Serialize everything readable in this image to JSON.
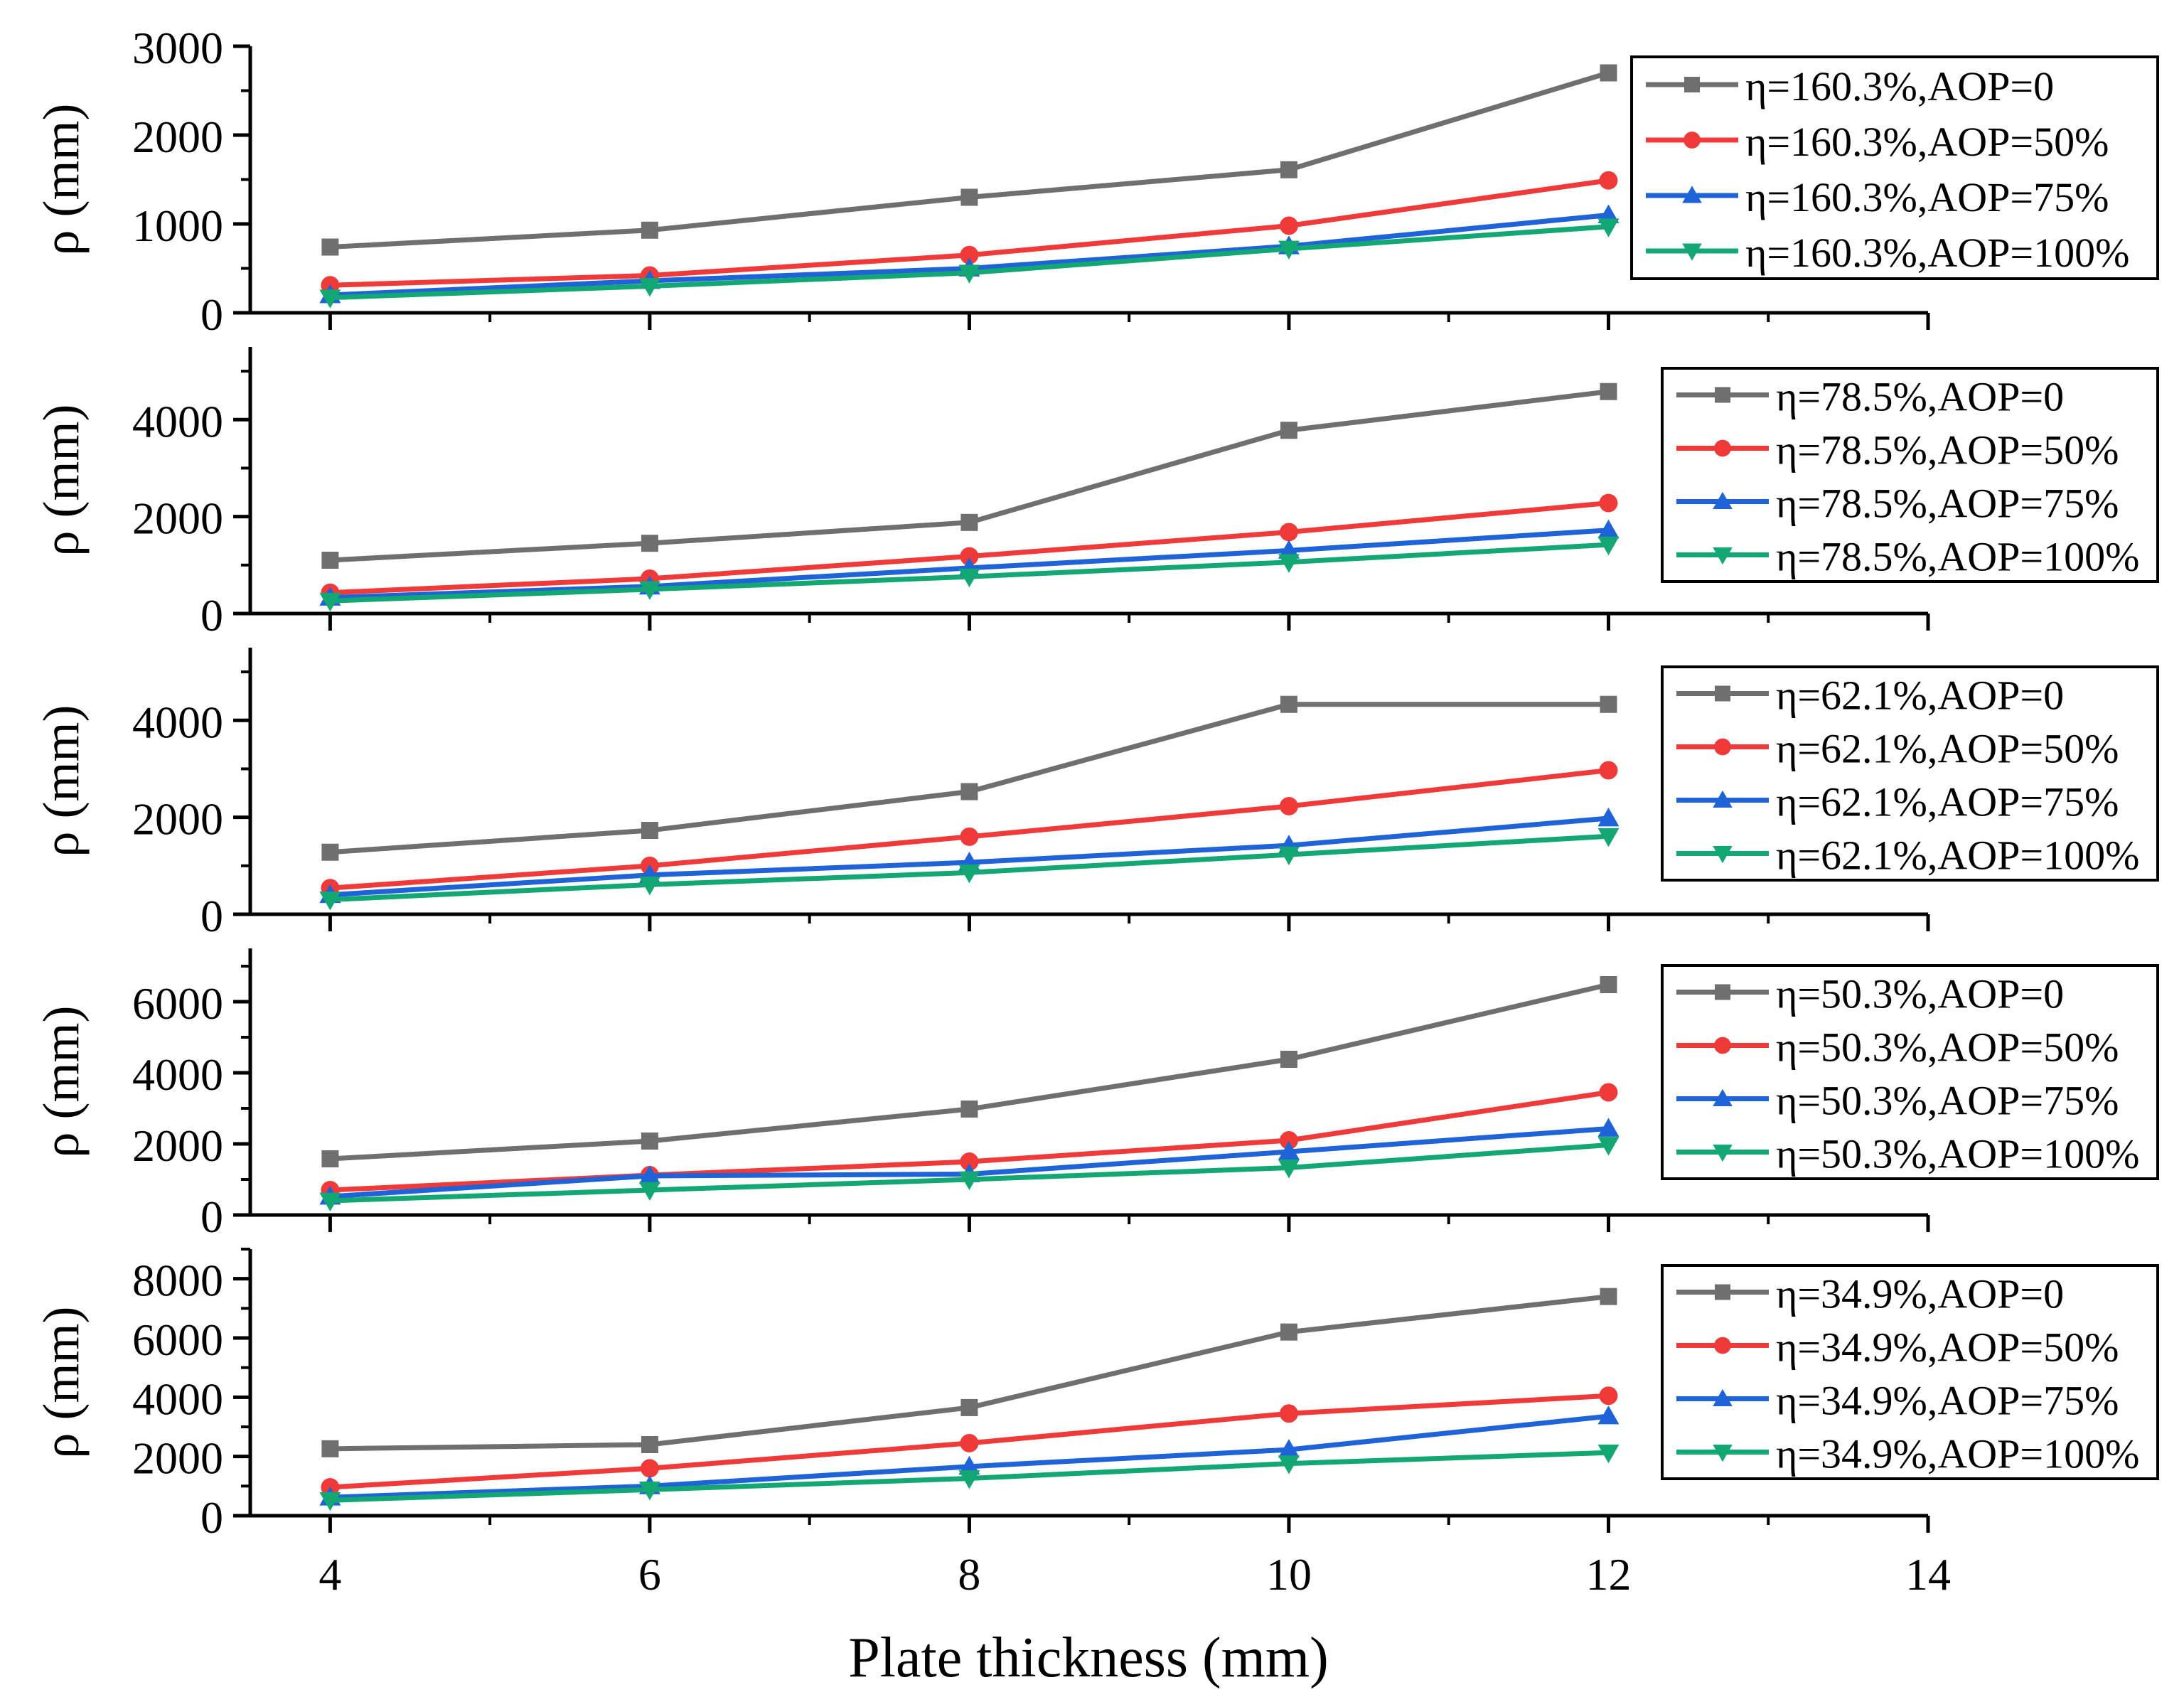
{
  "figure": {
    "xlabel": "Plate thickness (mm)",
    "x_ticks": [
      4,
      6,
      8,
      10,
      12,
      14
    ],
    "x_range": [
      3.5,
      14
    ]
  },
  "colors": {
    "AOP=0": "#6f6f6f",
    "AOP=50%": "#f03a3a",
    "AOP=75%": "#1f63d8",
    "AOP=100%": "#13a873"
  },
  "chart_data": [
    {
      "type": "line",
      "ylabel": "ρ (mm)",
      "ylim": [
        0,
        3000
      ],
      "y_ticks": [
        0,
        1000,
        2000,
        3000
      ],
      "x": [
        4,
        6,
        8,
        10,
        12
      ],
      "series": [
        {
          "name": "η=160.3%,AOP=0",
          "key": "AOP=0",
          "marker": "square",
          "values": [
            740,
            930,
            1300,
            1610,
            2700
          ]
        },
        {
          "name": "η=160.3%,AOP=50%",
          "key": "AOP=50%",
          "marker": "circle",
          "values": [
            310,
            420,
            650,
            980,
            1490
          ]
        },
        {
          "name": "η=160.3%,AOP=75%",
          "key": "AOP=75%",
          "marker": "triangle-up",
          "values": [
            200,
            360,
            500,
            750,
            1100
          ]
        },
        {
          "name": "η=160.3%,AOP=100%",
          "key": "AOP=100%",
          "marker": "triangle-down",
          "values": [
            170,
            300,
            450,
            720,
            970
          ]
        }
      ]
    },
    {
      "type": "line",
      "ylabel": "ρ (mm)",
      "ylim": [
        0,
        5500
      ],
      "y_ticks": [
        0,
        2000,
        4000
      ],
      "x": [
        4,
        6,
        8,
        10,
        12
      ],
      "series": [
        {
          "name": "η=78.5%,AOP=0",
          "key": "AOP=0",
          "marker": "square",
          "values": [
            1100,
            1450,
            1880,
            3780,
            4580
          ]
        },
        {
          "name": "η=78.5%,AOP=50%",
          "key": "AOP=50%",
          "marker": "circle",
          "values": [
            430,
            720,
            1180,
            1680,
            2280
          ]
        },
        {
          "name": "η=78.5%,AOP=75%",
          "key": "AOP=75%",
          "marker": "triangle-up",
          "values": [
            330,
            560,
            940,
            1300,
            1720
          ]
        },
        {
          "name": "η=78.5%,AOP=100%",
          "key": "AOP=100%",
          "marker": "triangle-down",
          "values": [
            260,
            500,
            760,
            1060,
            1420
          ]
        }
      ]
    },
    {
      "type": "line",
      "ylabel": "ρ (mm)",
      "ylim": [
        0,
        5500
      ],
      "y_ticks": [
        0,
        2000,
        4000
      ],
      "x": [
        4,
        6,
        8,
        10,
        12
      ],
      "series": [
        {
          "name": "η=62.1%,AOP=0",
          "key": "AOP=0",
          "marker": "square",
          "values": [
            1280,
            1730,
            2530,
            4330,
            4330
          ]
        },
        {
          "name": "η=62.1%,AOP=50%",
          "key": "AOP=50%",
          "marker": "circle",
          "values": [
            540,
            1000,
            1600,
            2230,
            2970
          ]
        },
        {
          "name": "η=62.1%,AOP=75%",
          "key": "AOP=75%",
          "marker": "triangle-up",
          "values": [
            400,
            810,
            1070,
            1420,
            1980
          ]
        },
        {
          "name": "η=62.1%,AOP=100%",
          "key": "AOP=100%",
          "marker": "triangle-down",
          "values": [
            300,
            610,
            860,
            1230,
            1610
          ]
        }
      ]
    },
    {
      "type": "line",
      "ylabel": "ρ (mm)",
      "ylim": [
        0,
        7500
      ],
      "y_ticks": [
        0,
        2000,
        4000,
        6000
      ],
      "x": [
        4,
        6,
        8,
        10,
        12
      ],
      "series": [
        {
          "name": "η=50.3%,AOP=0",
          "key": "AOP=0",
          "marker": "square",
          "values": [
            1580,
            2080,
            2980,
            4380,
            6480
          ]
        },
        {
          "name": "η=50.3%,AOP=50%",
          "key": "AOP=50%",
          "marker": "circle",
          "values": [
            700,
            1120,
            1500,
            2100,
            3450
          ]
        },
        {
          "name": "η=50.3%,AOP=75%",
          "key": "AOP=75%",
          "marker": "triangle-up",
          "values": [
            520,
            1100,
            1150,
            1780,
            2430
          ]
        },
        {
          "name": "η=50.3%,AOP=100%",
          "key": "AOP=100%",
          "marker": "triangle-down",
          "values": [
            400,
            700,
            1000,
            1330,
            1970
          ]
        }
      ]
    },
    {
      "type": "line",
      "ylabel": "ρ (mm)",
      "ylim": [
        0,
        9000
      ],
      "y_ticks": [
        0,
        2000,
        4000,
        6000,
        8000
      ],
      "x": [
        4,
        6,
        8,
        10,
        12
      ],
      "series": [
        {
          "name": "η=34.9%,AOP=0",
          "key": "AOP=0",
          "marker": "square",
          "values": [
            2260,
            2400,
            3650,
            6200,
            7400
          ]
        },
        {
          "name": "η=34.9%,AOP=50%",
          "key": "AOP=50%",
          "marker": "circle",
          "values": [
            960,
            1600,
            2450,
            3450,
            4050
          ]
        },
        {
          "name": "η=34.9%,AOP=75%",
          "key": "AOP=75%",
          "marker": "triangle-up",
          "values": [
            620,
            1000,
            1660,
            2230,
            3360
          ]
        },
        {
          "name": "η=34.9%,AOP=100%",
          "key": "AOP=100%",
          "marker": "triangle-down",
          "values": [
            520,
            880,
            1260,
            1760,
            2130
          ]
        }
      ]
    }
  ]
}
